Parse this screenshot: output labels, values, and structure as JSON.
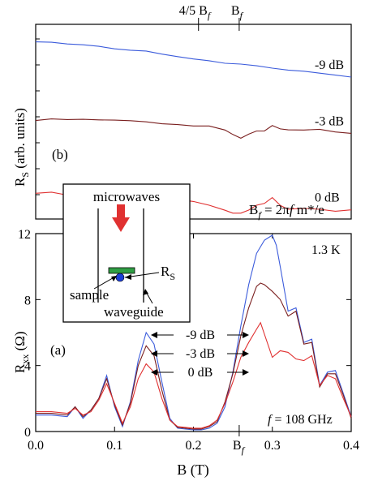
{
  "chart_data": [
    {
      "panel": "(b)",
      "type": "line",
      "ylabel": "R_S (arb. units)",
      "ylabel_main": "R",
      "ylabel_sub": "S",
      "ylabel_rest": " (arb. units)",
      "xlim": [
        0.0,
        0.4
      ],
      "ylim": [
        0,
        10
      ],
      "top_ticks": [
        "4/5 B",
        "B"
      ],
      "top_tick_sub": "f",
      "top_tick_x": [
        0.2064,
        0.258
      ],
      "annotation_formula": "B_f = 2πf m*/e",
      "formula_parts": [
        "B",
        "f",
        " = 2π",
        "f",
        " m*/e"
      ],
      "series": [
        {
          "name": "-9 dB",
          "color": "#3b5bdb",
          "x": [
            0.0,
            0.02,
            0.04,
            0.06,
            0.08,
            0.1,
            0.12,
            0.14,
            0.16,
            0.18,
            0.2,
            0.22,
            0.24,
            0.26,
            0.28,
            0.3,
            0.32,
            0.34,
            0.36,
            0.38,
            0.4
          ],
          "y": [
            9.1,
            9.08,
            8.99,
            8.95,
            8.87,
            8.74,
            8.67,
            8.63,
            8.47,
            8.34,
            8.22,
            8.13,
            8.0,
            7.96,
            7.87,
            7.75,
            7.65,
            7.59,
            7.49,
            7.39,
            7.29
          ]
        },
        {
          "name": "-3 dB",
          "color": "#7a1f1f",
          "x": [
            0.0,
            0.02,
            0.04,
            0.06,
            0.08,
            0.1,
            0.12,
            0.14,
            0.16,
            0.18,
            0.2,
            0.22,
            0.24,
            0.25,
            0.26,
            0.27,
            0.28,
            0.29,
            0.3,
            0.31,
            0.32,
            0.34,
            0.36,
            0.38,
            0.4
          ],
          "y": [
            5.06,
            5.14,
            5.11,
            5.12,
            5.09,
            5.08,
            5.05,
            4.99,
            4.89,
            4.85,
            4.78,
            4.78,
            4.57,
            4.34,
            4.15,
            4.36,
            4.52,
            4.52,
            4.8,
            4.63,
            4.58,
            4.57,
            4.61,
            4.47,
            4.4
          ]
        },
        {
          "name": "0 dB",
          "color": "#e03131",
          "x": [
            0.0,
            0.02,
            0.04,
            0.06,
            0.08,
            0.1,
            0.12,
            0.14,
            0.16,
            0.18,
            0.2,
            0.22,
            0.24,
            0.25,
            0.26,
            0.27,
            0.28,
            0.29,
            0.3,
            0.31,
            0.32,
            0.34,
            0.36,
            0.38,
            0.4
          ],
          "y": [
            1.32,
            1.38,
            1.23,
            1.24,
            1.24,
            1.19,
            1.15,
            1.11,
            1.02,
            1.01,
            0.9,
            0.71,
            0.45,
            0.3,
            0.3,
            0.46,
            0.71,
            0.8,
            1.1,
            0.7,
            0.5,
            0.55,
            0.5,
            0.4,
            0.47
          ]
        }
      ],
      "legend": [
        "-9 dB",
        "-3 dB",
        "0 dB"
      ]
    },
    {
      "panel": "(a)",
      "type": "line",
      "xlabel": "B (T)",
      "ylabel": "R_xx (Ω)",
      "ylabel_main": "R",
      "ylabel_sub": "xx",
      "ylabel_rest": " (Ω)",
      "xlim": [
        0.0,
        0.4
      ],
      "ylim": [
        0,
        12
      ],
      "xticks": [
        0.0,
        0.1,
        0.2,
        0.3,
        0.4
      ],
      "xtick_labels": [
        "0.0",
        "0.1",
        "0.2",
        "0.3",
        "0.4"
      ],
      "xtick_bf": 0.258,
      "xtick_bf_label": "B",
      "xtick_bf_sub": "f",
      "yticks": [
        0,
        4,
        8,
        12
      ],
      "ytick_labels": [
        "0",
        "4",
        "8",
        "12"
      ],
      "annotations": [
        "1.3 K",
        "f = 108 GHz"
      ],
      "freq_parts": [
        "f",
        " = 108 GHz"
      ],
      "series": [
        {
          "name": "-9 dB",
          "color": "#3b5bdb",
          "x": [
            0.0,
            0.02,
            0.04,
            0.05,
            0.06,
            0.07,
            0.08,
            0.09,
            0.1,
            0.11,
            0.12,
            0.13,
            0.14,
            0.15,
            0.16,
            0.17,
            0.18,
            0.19,
            0.2,
            0.21,
            0.22,
            0.23,
            0.24,
            0.25,
            0.26,
            0.27,
            0.28,
            0.29,
            0.3,
            0.305,
            0.31,
            0.32,
            0.33,
            0.34,
            0.35,
            0.36,
            0.37,
            0.38,
            0.39,
            0.4
          ],
          "y": [
            1.0,
            1.0,
            0.9,
            1.5,
            0.8,
            1.3,
            2.0,
            3.4,
            1.5,
            0.3,
            1.8,
            4.3,
            6.0,
            5.3,
            3.0,
            0.8,
            0.2,
            0.15,
            0.1,
            0.1,
            0.2,
            0.5,
            1.5,
            3.6,
            6.4,
            8.9,
            10.8,
            11.6,
            11.9,
            11.3,
            10.0,
            7.3,
            7.5,
            5.4,
            5.6,
            2.8,
            3.6,
            3.7,
            2.3,
            0.9
          ]
        },
        {
          "name": "-3 dB",
          "color": "#7a1f1f",
          "x": [
            0.0,
            0.02,
            0.04,
            0.05,
            0.06,
            0.07,
            0.08,
            0.09,
            0.1,
            0.11,
            0.12,
            0.13,
            0.14,
            0.15,
            0.16,
            0.17,
            0.18,
            0.19,
            0.2,
            0.21,
            0.22,
            0.23,
            0.24,
            0.25,
            0.26,
            0.27,
            0.28,
            0.285,
            0.29,
            0.3,
            0.31,
            0.32,
            0.33,
            0.34,
            0.35,
            0.36,
            0.37,
            0.38,
            0.39,
            0.4
          ],
          "y": [
            1.1,
            1.1,
            1.0,
            1.5,
            0.9,
            1.3,
            2.0,
            3.2,
            1.6,
            0.4,
            1.7,
            4.0,
            5.2,
            4.6,
            2.5,
            0.7,
            0.25,
            0.2,
            0.15,
            0.15,
            0.3,
            0.6,
            1.8,
            3.5,
            5.8,
            7.5,
            8.8,
            9.0,
            8.9,
            8.5,
            8.0,
            7.0,
            7.3,
            5.3,
            5.4,
            2.7,
            3.5,
            3.5,
            2.2,
            0.8
          ]
        },
        {
          "name": "0 dB",
          "color": "#e03131",
          "x": [
            0.0,
            0.02,
            0.04,
            0.05,
            0.06,
            0.07,
            0.08,
            0.09,
            0.1,
            0.11,
            0.12,
            0.13,
            0.14,
            0.15,
            0.16,
            0.17,
            0.18,
            0.19,
            0.2,
            0.21,
            0.22,
            0.23,
            0.24,
            0.25,
            0.26,
            0.27,
            0.28,
            0.285,
            0.29,
            0.3,
            0.31,
            0.32,
            0.33,
            0.34,
            0.35,
            0.36,
            0.37,
            0.38,
            0.39,
            0.4
          ],
          "y": [
            1.2,
            1.2,
            1.1,
            1.4,
            1.0,
            1.2,
            1.9,
            2.9,
            1.7,
            0.5,
            1.5,
            3.2,
            4.1,
            3.6,
            2.0,
            0.7,
            0.3,
            0.25,
            0.2,
            0.2,
            0.35,
            0.7,
            1.7,
            3.0,
            4.5,
            5.4,
            6.2,
            6.6,
            5.9,
            4.5,
            4.9,
            4.8,
            4.4,
            4.3,
            4.6,
            2.8,
            3.4,
            3.2,
            2.0,
            0.9
          ]
        }
      ],
      "legend": [
        "-9 dB",
        "-3 dB",
        "0 dB"
      ]
    }
  ],
  "inset": {
    "microwaves_label": "microwaves",
    "rs_label": "R",
    "rs_sub": "S",
    "sample_label": "sample",
    "waveguide_label": "waveguide",
    "arrow_color": "#e03131",
    "sample_color": "#2f9e44",
    "dot_color": "#1c3fd6"
  }
}
